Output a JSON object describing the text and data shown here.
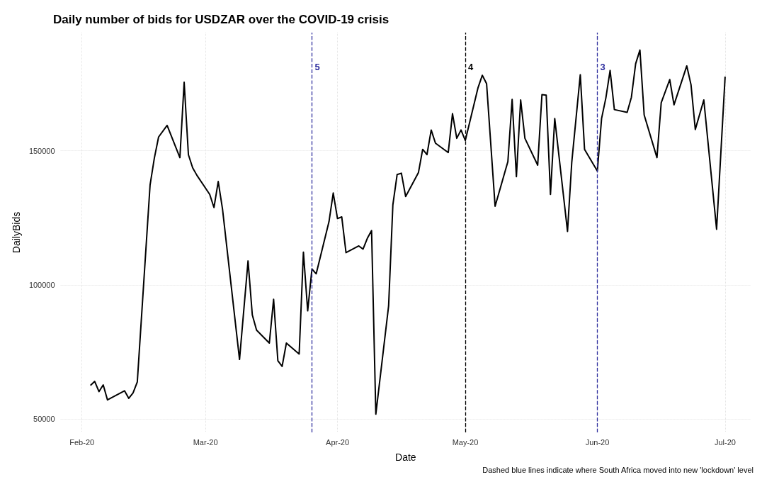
{
  "chart_data": {
    "type": "line",
    "title": "Daily number of bids for USDZAR over the COVID-19 crisis",
    "xlabel": "Date",
    "ylabel": "DailyBids",
    "annotations": [
      "Dashed blue lines indicate where South Africa moved into new 'lockdown' level"
    ],
    "x": [
      "2020-02-03",
      "2020-02-04",
      "2020-02-05",
      "2020-02-06",
      "2020-02-07",
      "2020-02-11",
      "2020-02-12",
      "2020-02-13",
      "2020-02-14",
      "2020-02-17",
      "2020-02-18",
      "2020-02-19",
      "2020-02-21",
      "2020-02-24",
      "2020-02-25",
      "2020-02-26",
      "2020-02-27",
      "2020-02-28",
      "2020-03-02",
      "2020-03-03",
      "2020-03-04",
      "2020-03-05",
      "2020-03-09",
      "2020-03-11",
      "2020-03-12",
      "2020-03-13",
      "2020-03-16",
      "2020-03-17",
      "2020-03-18",
      "2020-03-19",
      "2020-03-20",
      "2020-03-23",
      "2020-03-24",
      "2020-03-25",
      "2020-03-26",
      "2020-03-27",
      "2020-03-30",
      "2020-03-31",
      "2020-04-01",
      "2020-04-02",
      "2020-04-03",
      "2020-04-06",
      "2020-04-07",
      "2020-04-08",
      "2020-04-09",
      "2020-04-10",
      "2020-04-13",
      "2020-04-14",
      "2020-04-15",
      "2020-04-16",
      "2020-04-17",
      "2020-04-20",
      "2020-04-21",
      "2020-04-22",
      "2020-04-23",
      "2020-04-24",
      "2020-04-27",
      "2020-04-28",
      "2020-04-29",
      "2020-04-30",
      "2020-05-01",
      "2020-05-04",
      "2020-05-05",
      "2020-05-06",
      "2020-05-08",
      "2020-05-11",
      "2020-05-12",
      "2020-05-13",
      "2020-05-14",
      "2020-05-15",
      "2020-05-18",
      "2020-05-19",
      "2020-05-20",
      "2020-05-21",
      "2020-05-22",
      "2020-05-25",
      "2020-05-26",
      "2020-05-28",
      "2020-05-29",
      "2020-06-01",
      "2020-06-02",
      "2020-06-03",
      "2020-06-04",
      "2020-06-05",
      "2020-06-08",
      "2020-06-09",
      "2020-06-10",
      "2020-06-11",
      "2020-06-12",
      "2020-06-15",
      "2020-06-16",
      "2020-06-18",
      "2020-06-19",
      "2020-06-22",
      "2020-06-23",
      "2020-06-24",
      "2020-06-26",
      "2020-06-29",
      "2020-07-01"
    ],
    "series": [
      {
        "color": "#000000",
        "values": [
          62500,
          64000,
          60200,
          62700,
          57100,
          60500,
          57700,
          59700,
          63800,
          137200,
          147200,
          155100,
          159400,
          147400,
          175500,
          148500,
          143600,
          140800,
          133700,
          128800,
          138500,
          128300,
          72200,
          108900,
          88800,
          83100,
          78300,
          94600,
          71700,
          69600,
          78300,
          74200,
          112200,
          90300,
          105900,
          104100,
          123500,
          134200,
          124700,
          125300,
          112000,
          114500,
          113300,
          117300,
          120200,
          51800,
          92100,
          129800,
          141100,
          141600,
          132900,
          141800,
          150500,
          148500,
          157700,
          152800,
          149300,
          163800,
          154600,
          157700,
          153800,
          173500,
          178100,
          175000,
          129300,
          145900,
          169100,
          140300,
          168900,
          154600,
          144600,
          170900,
          170700,
          133700,
          162000,
          119900,
          145700,
          178300,
          150500,
          142400,
          162000,
          169600,
          179900,
          165300,
          164300,
          169900,
          182400,
          187500,
          163300,
          147400,
          167900,
          176500,
          167100,
          181600,
          174500,
          157900,
          168900,
          120700,
          177600
        ]
      }
    ],
    "xlim": [
      "2020-01-27",
      "2020-07-07"
    ],
    "xticks": [
      {
        "value": "2020-02-01",
        "label": "Feb-20"
      },
      {
        "value": "2020-03-01",
        "label": "Mar-20"
      },
      {
        "value": "2020-04-01",
        "label": "Apr-20"
      },
      {
        "value": "2020-05-01",
        "label": "May-20"
      },
      {
        "value": "2020-06-01",
        "label": "Jun-20"
      },
      {
        "value": "2020-07-01",
        "label": "Jul-20"
      }
    ],
    "ylim": [
      45000,
      194000
    ],
    "yticks": [
      50000,
      100000,
      150000
    ],
    "ref_lines": [
      {
        "axis": "x",
        "value": "2020-03-26",
        "label": "5",
        "color": "#2e2e9e",
        "line_style": "dashed"
      },
      {
        "axis": "x",
        "value": "2020-05-01",
        "label": "4",
        "color": "#000000",
        "line_style": "dashed"
      },
      {
        "axis": "x",
        "value": "2020-06-01",
        "label": "3",
        "color": "#2e2e9e",
        "line_style": "dashed"
      }
    ],
    "grid": true,
    "line_style": "solid",
    "marker": "none"
  }
}
